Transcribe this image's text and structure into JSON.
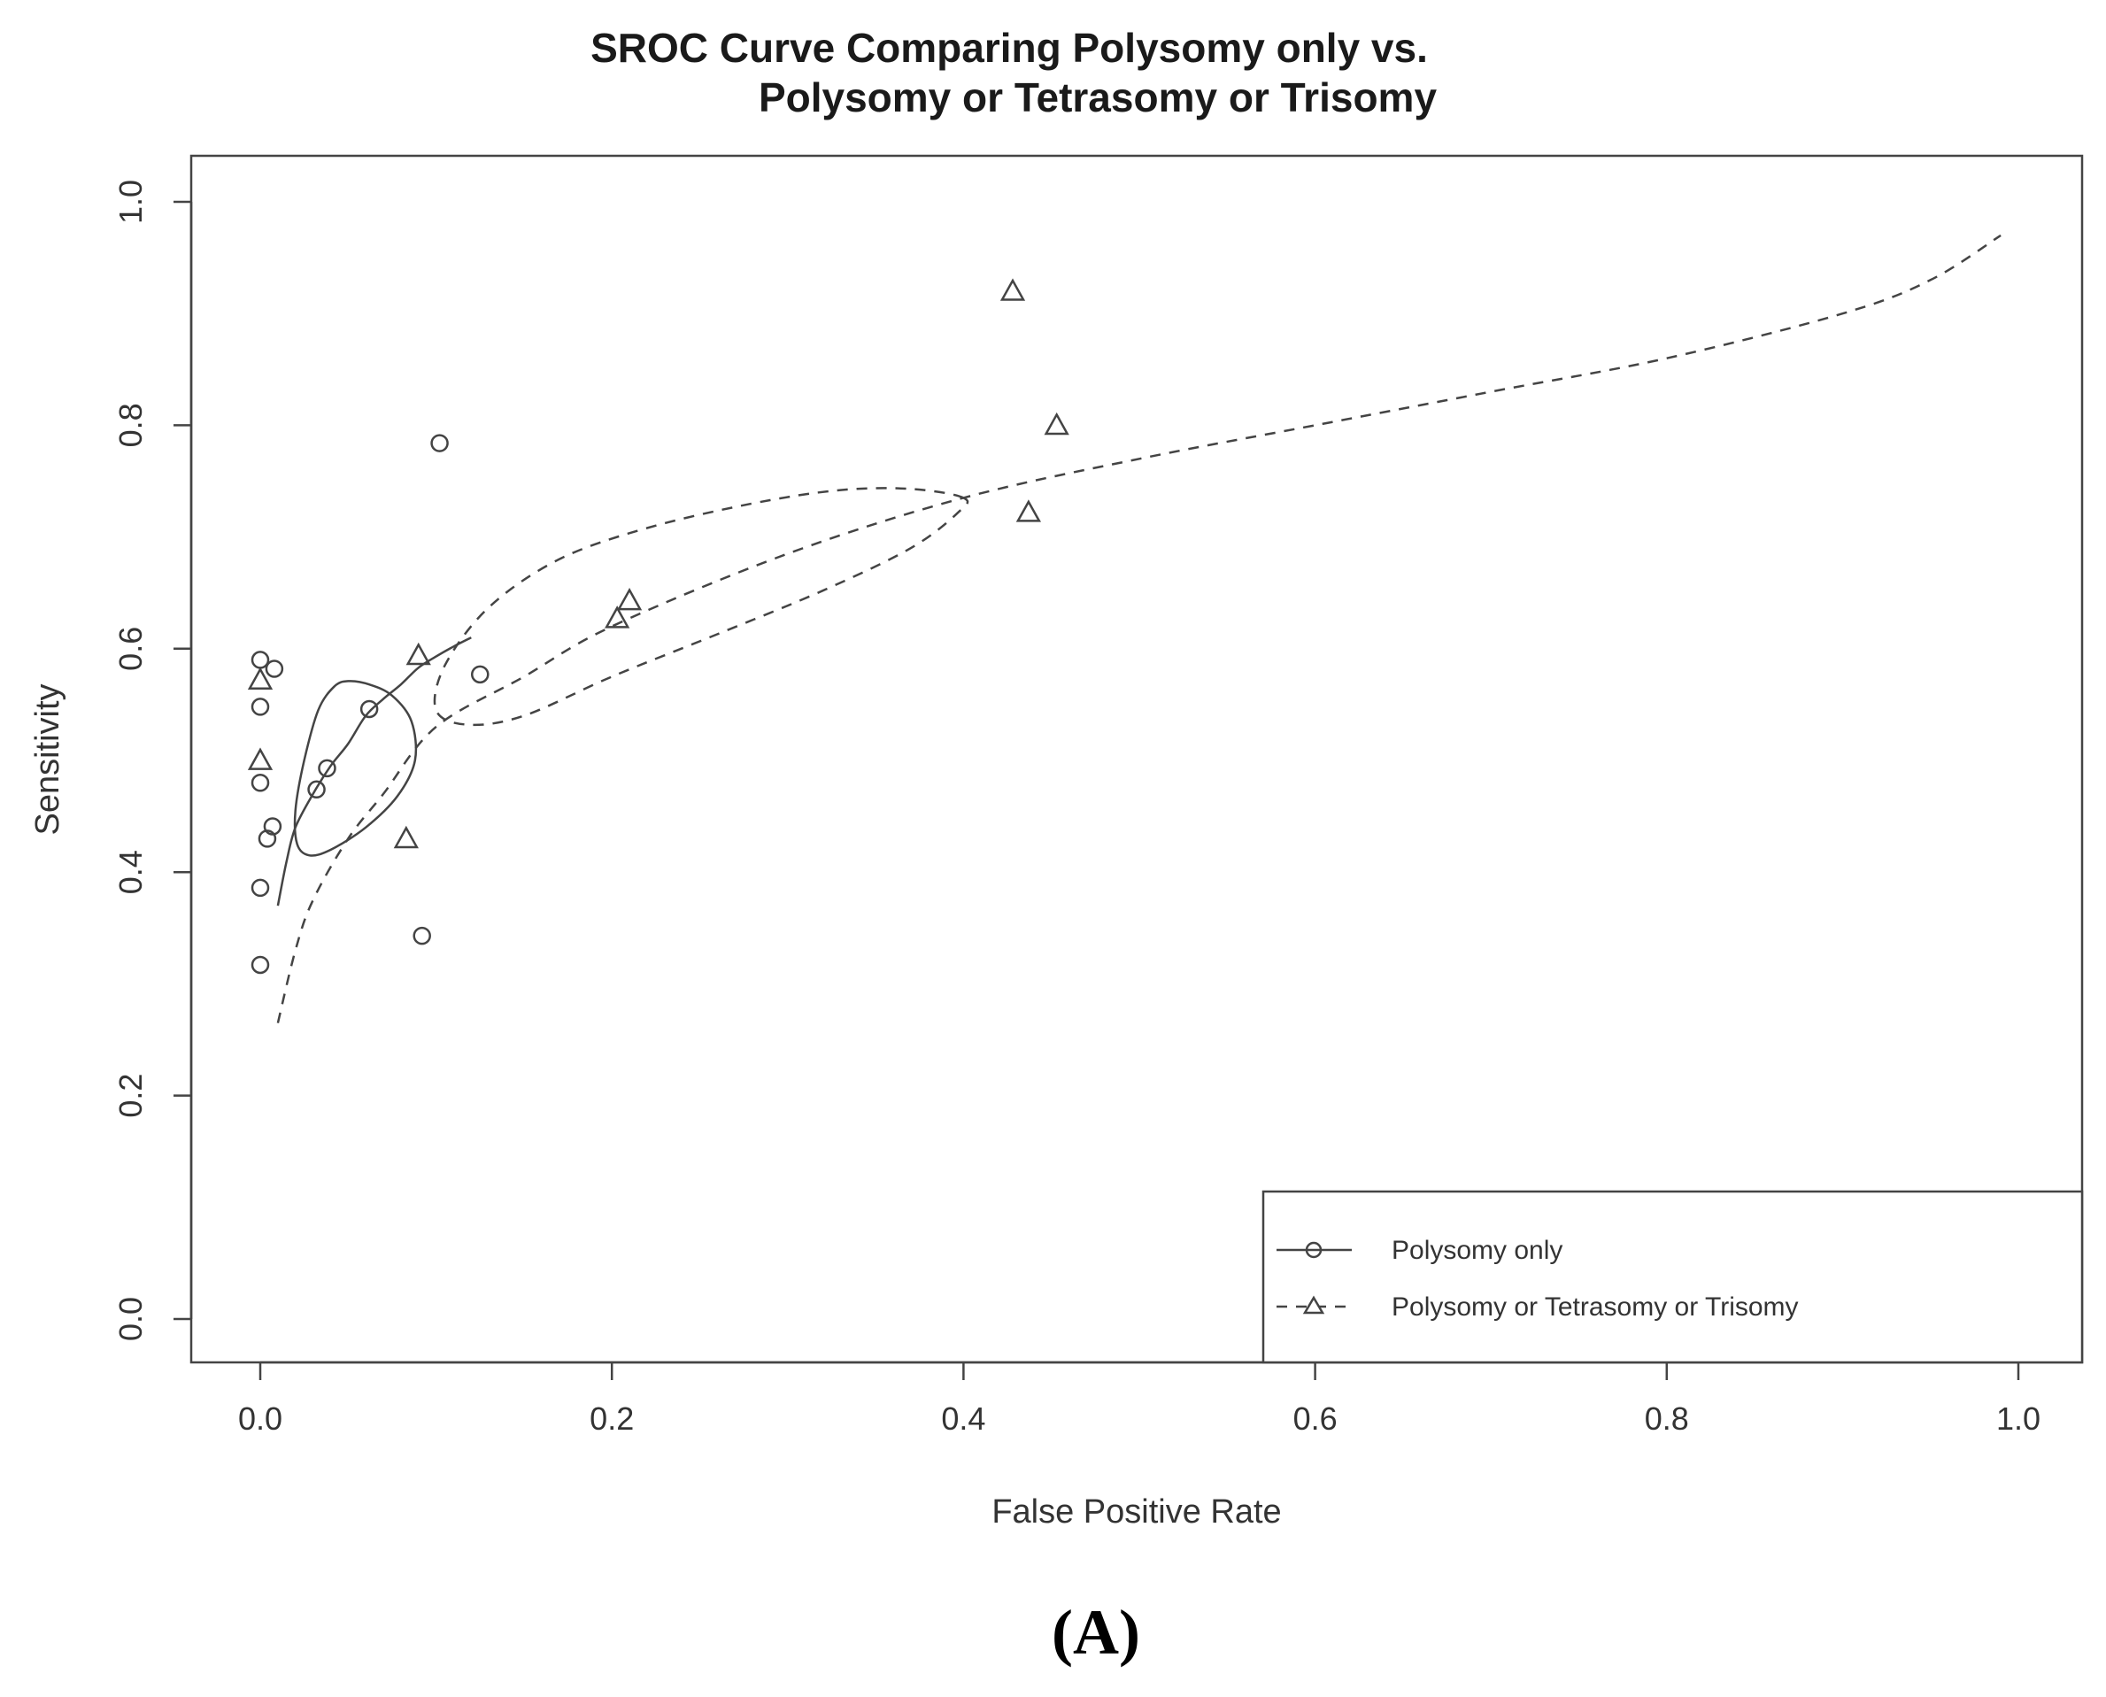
{
  "chart_data": {
    "type": "scatter",
    "title": [
      "SROC Curve Comparing Polysomy only vs.",
      "Polysomy or Tetrasomy or Trisomy"
    ],
    "xlabel": "False Positive Rate",
    "ylabel": "Sensitivity",
    "xlim": [
      -0.04,
      1.04
    ],
    "ylim": [
      -0.04,
      1.04
    ],
    "x_ticks": [
      0.0,
      0.2,
      0.4,
      0.6,
      0.8,
      1.0
    ],
    "y_ticks": [
      0.0,
      0.2,
      0.4,
      0.6,
      0.8,
      1.0
    ],
    "x_tick_labels": [
      "0.0",
      "0.2",
      "0.4",
      "0.6",
      "0.8",
      "1.0"
    ],
    "y_tick_labels": [
      "0.0",
      "0.2",
      "0.4",
      "0.6",
      "0.8",
      "1.0"
    ],
    "grid": false,
    "legend_position": "bottom-right",
    "panel_label": "(A)",
    "series": [
      {
        "name": "Polysomy only",
        "marker": "circle",
        "line_style": "solid",
        "color": "#444444",
        "points": [
          {
            "x": 0.0,
            "y": 0.59
          },
          {
            "x": 0.008,
            "y": 0.582
          },
          {
            "x": 0.0,
            "y": 0.548
          },
          {
            "x": 0.0,
            "y": 0.48
          },
          {
            "x": 0.007,
            "y": 0.441
          },
          {
            "x": 0.004,
            "y": 0.43
          },
          {
            "x": 0.0,
            "y": 0.386
          },
          {
            "x": 0.0,
            "y": 0.317
          },
          {
            "x": 0.032,
            "y": 0.474
          },
          {
            "x": 0.038,
            "y": 0.493
          },
          {
            "x": 0.062,
            "y": 0.546
          },
          {
            "x": 0.102,
            "y": 0.784
          },
          {
            "x": 0.125,
            "y": 0.577
          },
          {
            "x": 0.092,
            "y": 0.343
          }
        ],
        "sroc_curve": [
          {
            "x": 0.01,
            "y": 0.37
          },
          {
            "x": 0.015,
            "y": 0.41
          },
          {
            "x": 0.02,
            "y": 0.44
          },
          {
            "x": 0.03,
            "y": 0.47
          },
          {
            "x": 0.04,
            "y": 0.495
          },
          {
            "x": 0.05,
            "y": 0.515
          },
          {
            "x": 0.06,
            "y": 0.54
          },
          {
            "x": 0.07,
            "y": 0.555
          },
          {
            "x": 0.08,
            "y": 0.568
          },
          {
            "x": 0.09,
            "y": 0.583
          },
          {
            "x": 0.1,
            "y": 0.593
          },
          {
            "x": 0.11,
            "y": 0.602
          },
          {
            "x": 0.12,
            "y": 0.61
          }
        ],
        "confidence_region": [
          {
            "x": 0.05,
            "y": 0.571
          },
          {
            "x": 0.062,
            "y": 0.568
          },
          {
            "x": 0.075,
            "y": 0.558
          },
          {
            "x": 0.086,
            "y": 0.535
          },
          {
            "x": 0.088,
            "y": 0.5
          },
          {
            "x": 0.078,
            "y": 0.468
          },
          {
            "x": 0.06,
            "y": 0.44
          },
          {
            "x": 0.04,
            "y": 0.42
          },
          {
            "x": 0.028,
            "y": 0.415
          },
          {
            "x": 0.021,
            "y": 0.425
          },
          {
            "x": 0.02,
            "y": 0.455
          },
          {
            "x": 0.025,
            "y": 0.5
          },
          {
            "x": 0.033,
            "y": 0.545
          },
          {
            "x": 0.042,
            "y": 0.566
          }
        ]
      },
      {
        "name": "Polysomy or Tetrasomy or Trisomy",
        "marker": "triangle",
        "line_style": "dashed",
        "color": "#444444",
        "points": [
          {
            "x": 0.0,
            "y": 0.572
          },
          {
            "x": 0.0,
            "y": 0.5
          },
          {
            "x": 0.09,
            "y": 0.594
          },
          {
            "x": 0.083,
            "y": 0.43
          },
          {
            "x": 0.203,
            "y": 0.627
          },
          {
            "x": 0.21,
            "y": 0.643
          },
          {
            "x": 0.428,
            "y": 0.92
          },
          {
            "x": 0.453,
            "y": 0.8
          },
          {
            "x": 0.437,
            "y": 0.722
          }
        ],
        "sroc_curve": [
          {
            "x": 0.01,
            "y": 0.265
          },
          {
            "x": 0.02,
            "y": 0.33
          },
          {
            "x": 0.03,
            "y": 0.375
          },
          {
            "x": 0.05,
            "y": 0.43
          },
          {
            "x": 0.07,
            "y": 0.47
          },
          {
            "x": 0.1,
            "y": 0.53
          },
          {
            "x": 0.15,
            "y": 0.575
          },
          {
            "x": 0.2,
            "y": 0.62
          },
          {
            "x": 0.3,
            "y": 0.685
          },
          {
            "x": 0.4,
            "y": 0.735
          },
          {
            "x": 0.5,
            "y": 0.77
          },
          {
            "x": 0.6,
            "y": 0.8
          },
          {
            "x": 0.7,
            "y": 0.83
          },
          {
            "x": 0.8,
            "y": 0.86
          },
          {
            "x": 0.9,
            "y": 0.9
          },
          {
            "x": 0.95,
            "y": 0.93
          },
          {
            "x": 0.99,
            "y": 0.97
          }
        ],
        "confidence_region": [
          {
            "x": 0.4,
            "y": 0.735
          },
          {
            "x": 0.37,
            "y": 0.743
          },
          {
            "x": 0.33,
            "y": 0.742
          },
          {
            "x": 0.28,
            "y": 0.73
          },
          {
            "x": 0.22,
            "y": 0.708
          },
          {
            "x": 0.17,
            "y": 0.68
          },
          {
            "x": 0.13,
            "y": 0.637
          },
          {
            "x": 0.105,
            "y": 0.585
          },
          {
            "x": 0.1,
            "y": 0.545
          },
          {
            "x": 0.118,
            "y": 0.532
          },
          {
            "x": 0.15,
            "y": 0.54
          },
          {
            "x": 0.2,
            "y": 0.575
          },
          {
            "x": 0.26,
            "y": 0.613
          },
          {
            "x": 0.32,
            "y": 0.652
          },
          {
            "x": 0.37,
            "y": 0.69
          },
          {
            "x": 0.397,
            "y": 0.722
          }
        ]
      }
    ]
  }
}
